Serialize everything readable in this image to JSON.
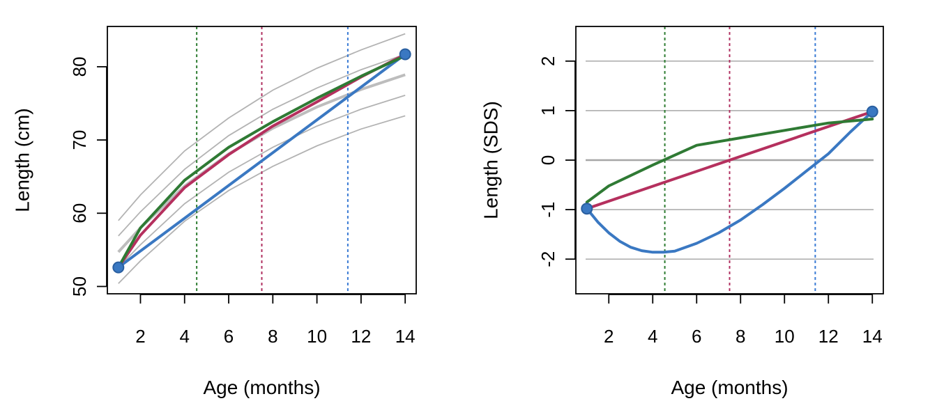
{
  "chart_data": [
    {
      "type": "line",
      "title": "",
      "xlabel": "Age (months)",
      "ylabel": "Length (cm)",
      "xlim": [
        0.5,
        14.5
      ],
      "ylim": [
        49,
        85.5
      ],
      "xticks": [
        2,
        4,
        6,
        8,
        10,
        12,
        14
      ],
      "yticks": [
        50,
        60,
        70,
        80
      ],
      "grid": false,
      "reference_lines": {
        "color": "#b3b3b3",
        "median_color": "#bdbdbd",
        "curves": [
          {
            "x": [
              1,
              2,
              4,
              6,
              8,
              10,
              12,
              14
            ],
            "y": [
              59.0,
              62.5,
              68.5,
              73.0,
              76.8,
              79.8,
              82.3,
              84.5
            ]
          },
          {
            "x": [
              1,
              2,
              4,
              6,
              8,
              10,
              12,
              14
            ],
            "y": [
              56.9,
              60.2,
              66.0,
              70.6,
              74.2,
              77.1,
              79.6,
              81.7
            ]
          },
          {
            "x": [
              1,
              2,
              4,
              6,
              8,
              10,
              12,
              14
            ],
            "y": [
              54.7,
              58.0,
              63.7,
              68.1,
              71.6,
              74.5,
              76.9,
              78.9
            ],
            "median": true
          },
          {
            "x": [
              1,
              2,
              4,
              6,
              8,
              10,
              12,
              14
            ],
            "y": [
              52.6,
              55.7,
              61.3,
              65.6,
              69.0,
              71.9,
              74.2,
              76.1
            ]
          },
          {
            "x": [
              1,
              2,
              4,
              6,
              8,
              10,
              12,
              14
            ],
            "y": [
              50.4,
              53.5,
              58.9,
              63.1,
              66.4,
              69.2,
              71.5,
              73.3
            ]
          }
        ]
      },
      "vlines": [
        {
          "x": 4.55,
          "color": "#2e7d32"
        },
        {
          "x": 7.5,
          "color": "#b03060"
        },
        {
          "x": 11.4,
          "color": "#3a7bd5"
        }
      ],
      "series": [
        {
          "color": "#3a78c2",
          "x": [
            1,
            14
          ],
          "y": [
            52.6,
            81.7
          ]
        },
        {
          "color": "#b5305e",
          "x": [
            1,
            2,
            4,
            6,
            8,
            10,
            12,
            14
          ],
          "y": [
            52.6,
            57.0,
            63.5,
            68.0,
            71.9,
            75.2,
            78.6,
            81.7
          ]
        },
        {
          "color": "#2f7a34",
          "x": [
            1,
            2,
            4,
            6,
            8,
            10,
            12,
            14
          ],
          "y": [
            52.6,
            58.0,
            64.5,
            69.0,
            72.5,
            75.7,
            78.7,
            81.5
          ]
        }
      ],
      "points": {
        "color": "#3a78c2",
        "x": [
          1,
          14
        ],
        "y": [
          52.6,
          81.7
        ]
      }
    },
    {
      "type": "line",
      "title": "",
      "xlabel": "Age (months)",
      "ylabel": "Length (SDS)",
      "xlim": [
        0.5,
        14.5
      ],
      "ylim": [
        -2.7,
        2.7
      ],
      "xticks": [
        2,
        4,
        6,
        8,
        10,
        12,
        14
      ],
      "yticks": [
        -2,
        -1,
        0,
        1,
        2
      ],
      "grid": false,
      "hlines": [
        {
          "y": -2,
          "color": "#b3b3b3"
        },
        {
          "y": -1,
          "color": "#b3b3b3"
        },
        {
          "y": 0,
          "color": "#a6a6a6"
        },
        {
          "y": 1,
          "color": "#b3b3b3"
        },
        {
          "y": 2,
          "color": "#b3b3b3"
        }
      ],
      "vlines": [
        {
          "x": 4.55,
          "color": "#2e7d32"
        },
        {
          "x": 7.5,
          "color": "#b03060"
        },
        {
          "x": 11.4,
          "color": "#3a7bd5"
        }
      ],
      "series": [
        {
          "color": "#3a78c2",
          "x": [
            1,
            1.5,
            2,
            2.5,
            3,
            3.5,
            4,
            4.5,
            5,
            6,
            7,
            8,
            9,
            10,
            11,
            12,
            13,
            14
          ],
          "y": [
            -0.98,
            -1.25,
            -1.47,
            -1.64,
            -1.76,
            -1.83,
            -1.86,
            -1.86,
            -1.84,
            -1.68,
            -1.47,
            -1.21,
            -0.9,
            -0.57,
            -0.22,
            0.13,
            0.57,
            0.98
          ]
        },
        {
          "color": "#b5305e",
          "x": [
            1,
            14
          ],
          "y": [
            -0.98,
            0.98
          ]
        },
        {
          "color": "#2f7a34",
          "x": [
            1,
            2,
            4,
            6,
            8,
            10,
            12,
            14
          ],
          "y": [
            -0.85,
            -0.52,
            -0.1,
            0.3,
            0.45,
            0.6,
            0.75,
            0.83
          ]
        }
      ],
      "points": {
        "color": "#3a78c2",
        "x": [
          1,
          14
        ],
        "y": [
          -0.98,
          0.98
        ]
      }
    }
  ]
}
